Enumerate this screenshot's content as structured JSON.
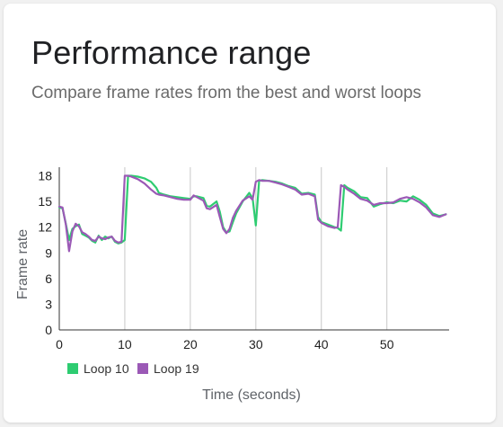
{
  "card": {
    "title": "Performance range",
    "subtitle": "Compare frame rates from the best and worst loops"
  },
  "chart_data": {
    "type": "line",
    "title": "Performance range",
    "subtitle": "Compare frame rates from the best and worst loops",
    "xlabel": "Time (seconds)",
    "ylabel": "Frame rate",
    "xlim": [
      0,
      59.5
    ],
    "ylim": [
      0,
      19
    ],
    "x_ticks": [
      0,
      10,
      20,
      30,
      40,
      50
    ],
    "y_ticks": [
      0,
      3,
      6,
      9,
      12,
      15,
      18
    ],
    "grid": "vertical",
    "legend_position": "bottom-left",
    "series": [
      {
        "name": "Loop 10",
        "color": "#2ecc71",
        "x": [
          0,
          0.5,
          1,
          1.5,
          2,
          2.5,
          3,
          3.5,
          4,
          4.5,
          5,
          5.5,
          6,
          6.5,
          7,
          7.5,
          8,
          8.5,
          9,
          9.5,
          10,
          10.5,
          11,
          12,
          13,
          14,
          14.8,
          15.2,
          16,
          17,
          18,
          19,
          20,
          20.5,
          21,
          22,
          22.5,
          23,
          24,
          24.5,
          25,
          25.5,
          26,
          26.5,
          27,
          28,
          29,
          29.5,
          30,
          30.5,
          31,
          32,
          33,
          34,
          35,
          36,
          37,
          38,
          39,
          39.5,
          40,
          41,
          42,
          42.5,
          43,
          43.5,
          44,
          45,
          46,
          47,
          48,
          49,
          50,
          51,
          52,
          53,
          54,
          55,
          56,
          57,
          58,
          59
        ],
        "y": [
          14.3,
          14.2,
          12.4,
          10.5,
          11.8,
          12.1,
          12.3,
          11.2,
          11.0,
          10.8,
          10.4,
          10.2,
          11.0,
          10.5,
          10.9,
          10.7,
          10.9,
          10.3,
          10.1,
          10.2,
          10.5,
          18.0,
          18.0,
          17.9,
          17.7,
          17.3,
          16.6,
          16.0,
          15.8,
          15.6,
          15.5,
          15.4,
          15.3,
          15.6,
          15.6,
          15.4,
          14.5,
          14.4,
          15.0,
          13.8,
          12.0,
          11.4,
          11.5,
          12.6,
          13.6,
          15.0,
          16.0,
          15.4,
          12.2,
          17.4,
          17.5,
          17.4,
          17.3,
          17.1,
          16.8,
          16.6,
          15.9,
          16.0,
          15.8,
          13.2,
          12.6,
          12.3,
          12.0,
          11.9,
          11.6,
          16.9,
          16.6,
          16.2,
          15.5,
          15.4,
          14.4,
          14.7,
          14.9,
          14.8,
          15.1,
          15.0,
          15.6,
          15.2,
          14.6,
          13.6,
          13.3,
          13.5
        ]
      },
      {
        "name": "Loop 19",
        "color": "#9b59b6",
        "x": [
          0,
          0.5,
          1,
          1.5,
          2,
          2.5,
          3,
          3.5,
          4,
          4.5,
          5,
          5.5,
          6,
          6.5,
          7,
          7.5,
          8,
          8.5,
          9,
          9.5,
          10,
          10.5,
          11,
          12,
          13,
          14,
          14.8,
          15.2,
          16,
          17,
          18,
          19,
          20,
          20.5,
          21,
          22,
          22.5,
          23,
          24,
          24.5,
          25,
          25.5,
          26,
          26.5,
          27,
          28,
          29,
          29.5,
          30,
          30.5,
          31,
          32,
          33,
          34,
          35,
          36,
          37,
          38,
          39,
          39.5,
          40,
          41,
          42,
          42.5,
          43,
          43.5,
          44,
          45,
          46,
          47,
          48,
          49,
          50,
          51,
          52,
          53,
          54,
          55,
          56,
          57,
          58,
          59
        ],
        "y": [
          14.4,
          14.3,
          12.3,
          9.2,
          11.5,
          12.4,
          12.1,
          11.4,
          11.2,
          10.9,
          10.5,
          10.4,
          10.9,
          10.7,
          10.6,
          10.8,
          10.9,
          10.4,
          10.2,
          10.3,
          18.0,
          18.0,
          17.9,
          17.6,
          17.1,
          16.4,
          15.9,
          15.8,
          15.7,
          15.5,
          15.3,
          15.2,
          15.2,
          15.7,
          15.5,
          15.1,
          14.2,
          14.1,
          14.6,
          13.2,
          11.8,
          11.3,
          11.8,
          13.1,
          13.9,
          15.1,
          15.6,
          15.2,
          17.3,
          17.5,
          17.4,
          17.4,
          17.2,
          17.0,
          16.7,
          16.4,
          15.8,
          15.9,
          15.6,
          12.9,
          12.5,
          12.1,
          11.9,
          12.0,
          16.9,
          16.7,
          16.4,
          15.9,
          15.3,
          15.1,
          14.6,
          14.8,
          14.8,
          14.9,
          15.3,
          15.5,
          15.3,
          14.9,
          14.3,
          13.4,
          13.2,
          13.5
        ]
      }
    ]
  }
}
